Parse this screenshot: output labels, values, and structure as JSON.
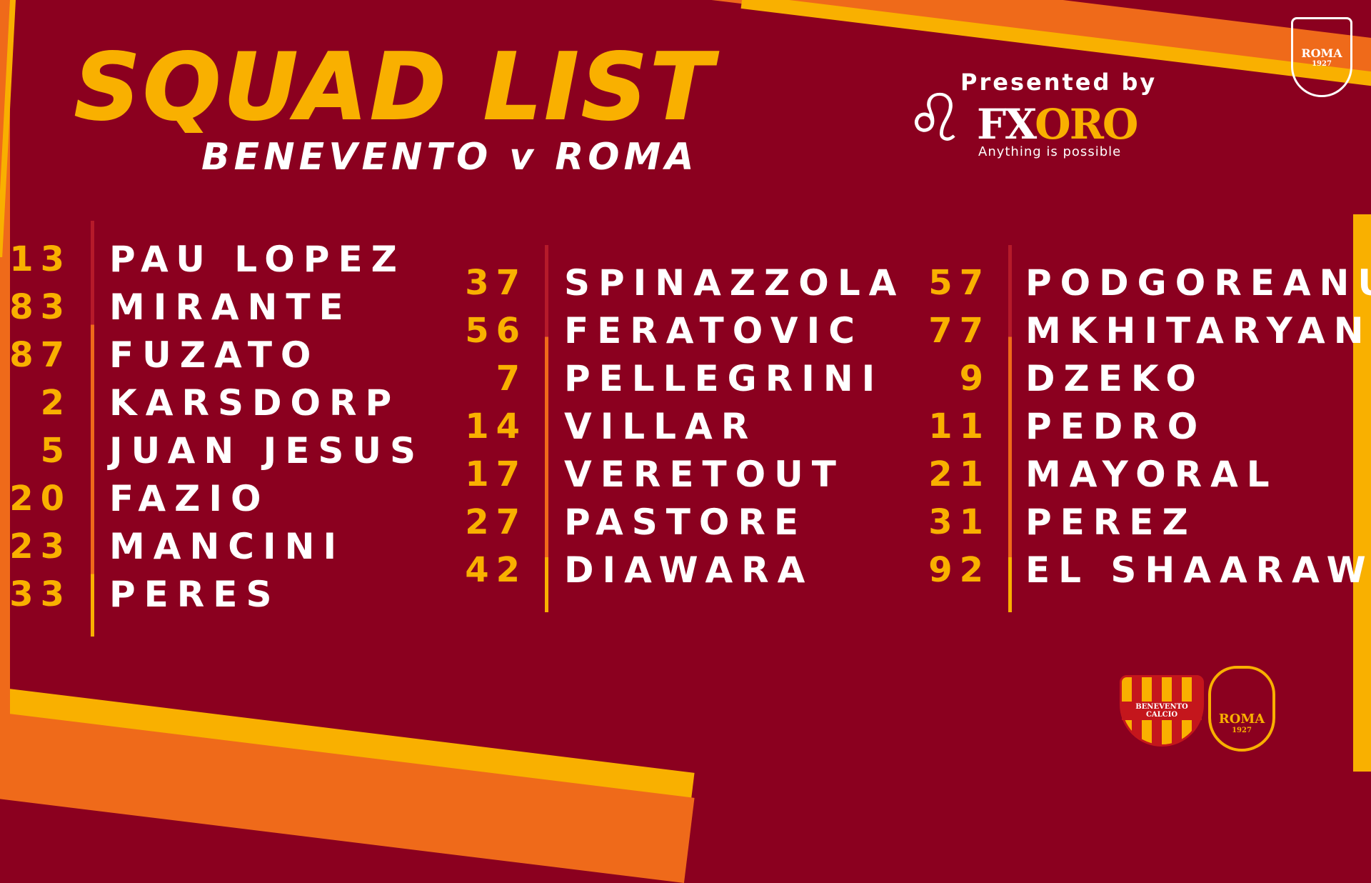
{
  "title": "SQUAD LIST",
  "subtitle": "BENEVENTO v ROMA",
  "sponsor": {
    "presented": "Presented by",
    "brand_a": "FX",
    "brand_b": "ORO",
    "tagline": "Anything is possible"
  },
  "crests": {
    "top": "ROMA",
    "top_year": "1927",
    "home": "BENEVENTO CALCIO",
    "away": "ROMA",
    "away_year": "1927"
  },
  "colors": {
    "background": "#8b001f",
    "yellow": "#f9b000",
    "orange": "#ef6a1a"
  },
  "columns": [
    [
      {
        "n": "13",
        "name": "PAU LOPEZ"
      },
      {
        "n": "83",
        "name": "MIRANTE"
      },
      {
        "n": "87",
        "name": "FUZATO"
      },
      {
        "n": "2",
        "name": "KARSDORP"
      },
      {
        "n": "5",
        "name": "JUAN JESUS"
      },
      {
        "n": "20",
        "name": "FAZIO"
      },
      {
        "n": "23",
        "name": "MANCINI"
      },
      {
        "n": "33",
        "name": "PERES"
      }
    ],
    [
      {
        "n": "37",
        "name": "SPINAZZOLA"
      },
      {
        "n": "56",
        "name": "FERATOVIC"
      },
      {
        "n": "7",
        "name": "PELLEGRINI"
      },
      {
        "n": "14",
        "name": "VILLAR"
      },
      {
        "n": "17",
        "name": "VERETOUT"
      },
      {
        "n": "27",
        "name": "PASTORE"
      },
      {
        "n": "42",
        "name": "DIAWARA"
      }
    ],
    [
      {
        "n": "57",
        "name": "PODGOREANU"
      },
      {
        "n": "77",
        "name": "MKHITARYAN"
      },
      {
        "n": "9",
        "name": "DZEKO"
      },
      {
        "n": "11",
        "name": "PEDRO"
      },
      {
        "n": "21",
        "name": "MAYORAL"
      },
      {
        "n": "31",
        "name": "PEREZ"
      },
      {
        "n": "92",
        "name": "EL SHAARAWY"
      }
    ]
  ]
}
